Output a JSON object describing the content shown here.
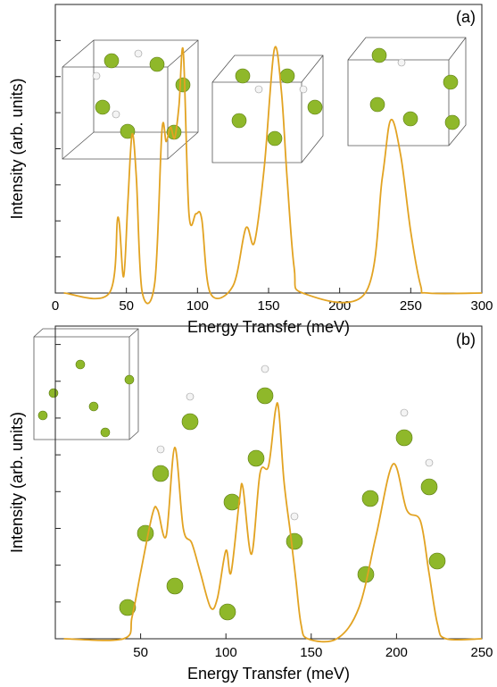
{
  "chart_data": [
    {
      "type": "line",
      "annotation": "(a)",
      "xlabel": "Energy Transfer (meV)",
      "ylabel": "Intensity (arb. units)",
      "xlim": [
        0,
        300
      ],
      "xticks": [
        0,
        50,
        100,
        150,
        200,
        250,
        300
      ],
      "ylim": [
        0,
        8
      ],
      "yticks": [
        1,
        2,
        3,
        4,
        5,
        6,
        7
      ],
      "x": [
        6,
        38,
        44,
        48,
        51,
        54,
        57,
        61,
        70,
        75,
        78,
        81,
        84,
        87,
        90,
        94,
        99,
        103,
        109,
        125,
        134,
        140,
        147,
        154,
        159,
        163,
        168,
        174,
        218,
        230,
        236,
        243,
        250,
        257,
        262,
        300
      ],
      "series": [
        {
          "color": "#e2a322",
          "values": [
            0,
            0,
            2.1,
            0.45,
            2.5,
            4.4,
            3.2,
            0.05,
            0.3,
            4.5,
            4.2,
            4.6,
            4.3,
            5.2,
            6.7,
            2.2,
            2.2,
            2.05,
            0,
            0.2,
            1.8,
            1.4,
            3.5,
            6.75,
            5.6,
            3.2,
            0.7,
            0,
            0,
            3.2,
            4.8,
            3.8,
            1.7,
            0.2,
            0,
            0
          ]
        }
      ]
    },
    {
      "type": "line",
      "annotation": "(b)",
      "xlabel": "Energy Transfer (meV)",
      "ylabel": "Intensity (arb. units)",
      "xlim": [
        0,
        250
      ],
      "xticks": [
        50,
        100,
        150,
        200,
        250
      ],
      "ylim": [
        0,
        8.5
      ],
      "yticks": [
        1,
        2,
        3,
        4,
        5,
        6,
        7,
        8
      ],
      "x": [
        5,
        40,
        45,
        50,
        57,
        60,
        65,
        70,
        75,
        80,
        85,
        91,
        95,
        100,
        103,
        108,
        110,
        115,
        120,
        125,
        129,
        131,
        134,
        138,
        141,
        144,
        148,
        165,
        178,
        188,
        198,
        206,
        214,
        219,
        224,
        229,
        250
      ],
      "series": [
        {
          "color": "#e2a322",
          "values": [
            0,
            0,
            0.6,
            1.8,
            3.4,
            3.5,
            2.8,
            5.2,
            3.0,
            2.6,
            1.8,
            0.85,
            1.1,
            2.4,
            1.8,
            3.8,
            4.1,
            2.3,
            4.5,
            4.7,
            6.2,
            6.2,
            4.3,
            2.8,
            1.6,
            0.4,
            0,
            0,
            0.85,
            2.8,
            4.75,
            3.5,
            3.2,
            1.8,
            0.4,
            0,
            0
          ]
        }
      ]
    }
  ]
}
